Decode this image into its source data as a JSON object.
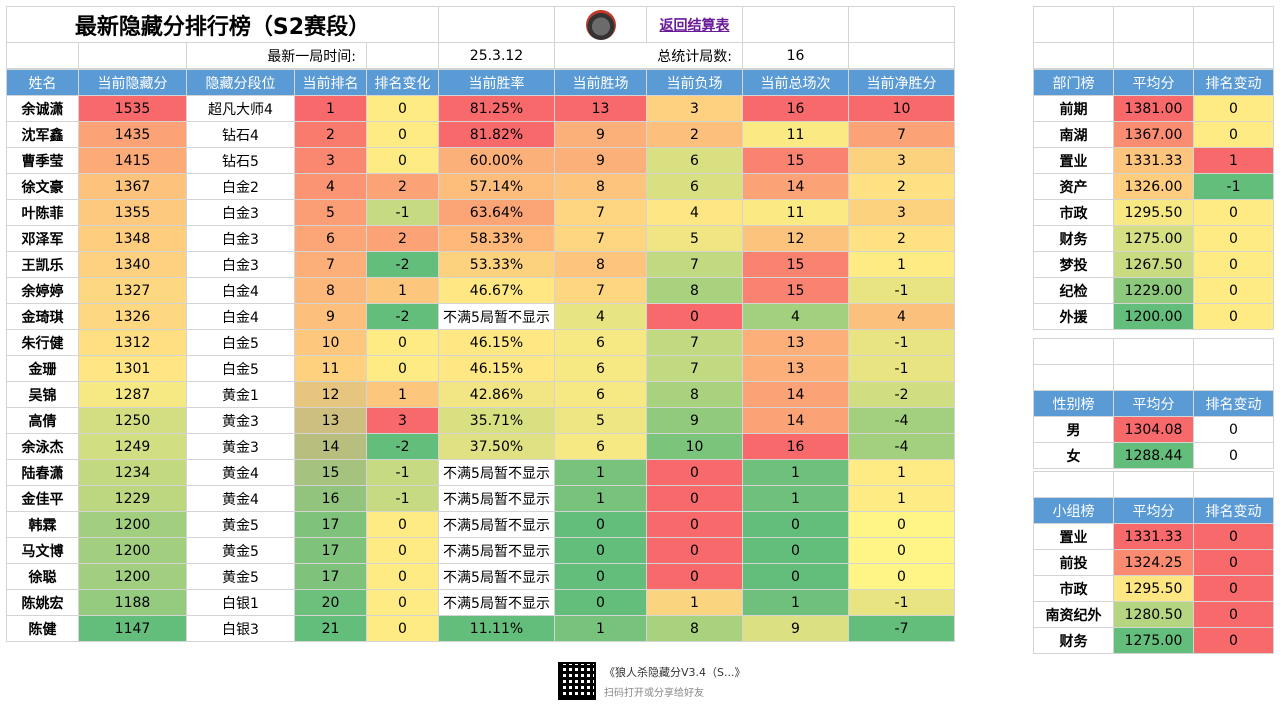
{
  "header": {
    "title": "最新隐藏分排行榜（S2赛段）",
    "back_link": "返回结算表",
    "last_game_label": "最新一局时间:",
    "last_game_value": "25.3.12",
    "total_games_label": "总统计局数:",
    "total_games_value": "16"
  },
  "main_table": {
    "columns": [
      "姓名",
      "当前隐藏分",
      "隐藏分段位",
      "当前排名",
      "排名变化",
      "当前胜率",
      "当前胜场",
      "当前负场",
      "当前总场次",
      "当前净胜分"
    ],
    "rows": [
      {
        "cells": [
          "余诚潇",
          "1535",
          "超凡大师4",
          "1",
          "0",
          "81.25%",
          "13",
          "3",
          "16",
          "10"
        ],
        "colors": [
          "#fff",
          "#f8696b",
          "#fff",
          "#f8696b",
          "#ffeb84",
          "#f8696b",
          "#f8696b",
          "#fdd17f",
          "#f8696b",
          "#f8696b"
        ]
      },
      {
        "cells": [
          "沈军鑫",
          "1435",
          "钻石4",
          "2",
          "0",
          "81.82%",
          "9",
          "2",
          "11",
          "7"
        ],
        "colors": [
          "#fff",
          "#fba376",
          "#fff",
          "#f97b6e",
          "#ffeb84",
          "#f8696b",
          "#fcb079",
          "#fdc07c",
          "#fbea83",
          "#fba376"
        ]
      },
      {
        "cells": [
          "曹季莹",
          "1415",
          "钻石5",
          "3",
          "0",
          "60.00%",
          "9",
          "6",
          "15",
          "3"
        ],
        "colors": [
          "#fff",
          "#fcaa77",
          "#fff",
          "#fa8871",
          "#ffeb84",
          "#fcb079",
          "#fcb079",
          "#d8e082",
          "#f98270",
          "#fdd27f"
        ]
      },
      {
        "cells": [
          "徐文豪",
          "1367",
          "白金2",
          "4",
          "2",
          "57.14%",
          "8",
          "6",
          "14",
          "2"
        ],
        "colors": [
          "#fff",
          "#fdc37d",
          "#fff",
          "#fb9473",
          "#fba376",
          "#fdbe7b",
          "#fdc47d",
          "#d8e082",
          "#fba276",
          "#fee182"
        ]
      },
      {
        "cells": [
          "叶陈菲",
          "1355",
          "白金3",
          "5",
          "-1",
          "63.64%",
          "7",
          "4",
          "11",
          "3"
        ],
        "colors": [
          "#fff",
          "#fdc97e",
          "#fff",
          "#fb9d75",
          "#c5da81",
          "#fba577",
          "#fed680",
          "#fde683",
          "#fbea83",
          "#fdd27f"
        ]
      },
      {
        "cells": [
          "邓泽军",
          "1348",
          "白金3",
          "6",
          "2",
          "58.33%",
          "7",
          "5",
          "12",
          "2"
        ],
        "colors": [
          "#fff",
          "#fecd7e",
          "#fff",
          "#fca677",
          "#fba376",
          "#fdb87a",
          "#fed680",
          "#efe683",
          "#fcc37c",
          "#fee182"
        ]
      },
      {
        "cells": [
          "王凯乐",
          "1340",
          "白金3",
          "7",
          "-2",
          "53.33%",
          "8",
          "7",
          "15",
          "1"
        ],
        "colors": [
          "#fff",
          "#fed180",
          "#fff",
          "#fcaf79",
          "#63be7b",
          "#fdd27f",
          "#fdc47d",
          "#c1da81",
          "#f98270",
          "#ffeb84"
        ]
      },
      {
        "cells": [
          "余婷婷",
          "1327",
          "白金4",
          "8",
          "1",
          "46.67%",
          "7",
          "8",
          "15",
          "-1"
        ],
        "colors": [
          "#fff",
          "#fed880",
          "#fff",
          "#fcb77a",
          "#fdc67d",
          "#ffe884",
          "#fed680",
          "#a9d27f",
          "#f98270",
          "#e8e482"
        ]
      },
      {
        "cells": [
          "金琦琪",
          "1326",
          "白金4",
          "9",
          "-2",
          "不满5局暂不显示",
          "4",
          "0",
          "4",
          "4"
        ],
        "colors": [
          "#fff",
          "#fed880",
          "#fff",
          "#fdc07c",
          "#63be7b",
          "#fff",
          "#e7e482",
          "#f8696b",
          "#a2d07f",
          "#fbc17c"
        ]
      },
      {
        "cells": [
          "朱行健",
          "1312",
          "白金5",
          "10",
          "0",
          "46.15%",
          "6",
          "7",
          "13",
          "-1"
        ],
        "colors": [
          "#fff",
          "#ffdf82",
          "#fff",
          "#fdc87d",
          "#ffeb84",
          "#ffe884",
          "#f6e883",
          "#c1da81",
          "#fcaf78",
          "#e8e482"
        ]
      },
      {
        "cells": [
          "金珊",
          "1301",
          "白金5",
          "11",
          "0",
          "46.15%",
          "6",
          "7",
          "13",
          "-1"
        ],
        "colors": [
          "#fff",
          "#ffe584",
          "#fff",
          "#fed17f",
          "#ffeb84",
          "#ffe884",
          "#f6e883",
          "#c1da81",
          "#fcaf78",
          "#e8e482"
        ]
      },
      {
        "cells": [
          "吴锦",
          "1287",
          "黄金1",
          "12",
          "1",
          "42.86%",
          "6",
          "8",
          "14",
          "-2"
        ],
        "colors": [
          "#fff",
          "#f6e883",
          "#fff",
          "#e6c57f",
          "#fdc67d",
          "#f1e683",
          "#f6e883",
          "#a9d27f",
          "#fba276",
          "#d0dd81"
        ]
      },
      {
        "cells": [
          "高倩",
          "1250",
          "黄金3",
          "13",
          "3",
          "35.71%",
          "5",
          "9",
          "14",
          "-4"
        ],
        "colors": [
          "#fff",
          "#d2de81",
          "#fff",
          "#cdbf7f",
          "#f8696b",
          "#d8e082",
          "#eee583",
          "#91ca7d",
          "#fba276",
          "#a2d07f"
        ]
      },
      {
        "cells": [
          "余泳杰",
          "1249",
          "黄金3",
          "14",
          "-2",
          "37.50%",
          "6",
          "10",
          "16",
          "-4"
        ],
        "colors": [
          "#fff",
          "#d1de81",
          "#fff",
          "#b8bf7e",
          "#63be7b",
          "#dfe182",
          "#f6e883",
          "#7ac47c",
          "#f8696b",
          "#a2d07f"
        ]
      },
      {
        "cells": [
          "陆春潇",
          "1234",
          "黄金4",
          "15",
          "-1",
          "不满5局暂不显示",
          "1",
          "0",
          "1",
          "1"
        ],
        "colors": [
          "#fff",
          "#c2d980",
          "#fff",
          "#a5c37e",
          "#c5da81",
          "#fff",
          "#78c37c",
          "#f8696b",
          "#6fc07c",
          "#ffeb84"
        ]
      },
      {
        "cells": [
          "金佳平",
          "1229",
          "黄金4",
          "16",
          "-1",
          "不满5局暂不显示",
          "1",
          "0",
          "1",
          "1"
        ],
        "colors": [
          "#fff",
          "#bdd780",
          "#fff",
          "#92c47d",
          "#c5da81",
          "#fff",
          "#78c37c",
          "#f8696b",
          "#6fc07c",
          "#ffeb84"
        ]
      },
      {
        "cells": [
          "韩霖",
          "1200",
          "黄金5",
          "17",
          "0",
          "不满5局暂不显示",
          "0",
          "0",
          "0",
          "0"
        ],
        "colors": [
          "#fff",
          "#a1cf7f",
          "#fff",
          "#7fc27c",
          "#ffeb84",
          "#fff",
          "#63be7b",
          "#f8696b",
          "#63be7b",
          "#fef586"
        ]
      },
      {
        "cells": [
          "马文博",
          "1200",
          "黄金5",
          "17",
          "0",
          "不满5局暂不显示",
          "0",
          "0",
          "0",
          "0"
        ],
        "colors": [
          "#fff",
          "#a1cf7f",
          "#fff",
          "#7fc27c",
          "#ffeb84",
          "#fff",
          "#63be7b",
          "#f8696b",
          "#63be7b",
          "#fef586"
        ]
      },
      {
        "cells": [
          "徐聪",
          "1200",
          "黄金5",
          "17",
          "0",
          "不满5局暂不显示",
          "0",
          "0",
          "0",
          "0"
        ],
        "colors": [
          "#fff",
          "#a1cf7f",
          "#fff",
          "#7fc27c",
          "#ffeb84",
          "#fff",
          "#63be7b",
          "#f8696b",
          "#63be7b",
          "#fef586"
        ]
      },
      {
        "cells": [
          "陈姚宏",
          "1188",
          "白银1",
          "20",
          "0",
          "不满5局暂不显示",
          "0",
          "1",
          "1",
          "-1"
        ],
        "colors": [
          "#fff",
          "#94cb7e",
          "#fff",
          "#6cc07b",
          "#ffeb84",
          "#fff",
          "#63be7b",
          "#fbd47f",
          "#6fc07c",
          "#e8e482"
        ]
      },
      {
        "cells": [
          "陈健",
          "1147",
          "白银3",
          "21",
          "0",
          "11.11%",
          "1",
          "8",
          "9",
          "-7"
        ],
        "colors": [
          "#fff",
          "#63be7b",
          "#fff",
          "#63be7b",
          "#ffeb84",
          "#63be7b",
          "#78c37c",
          "#a9d27f",
          "#dbe182",
          "#63be7b"
        ]
      }
    ]
  },
  "dept_table": {
    "columns": [
      "部门榜",
      "平均分",
      "排名变动"
    ],
    "rows": [
      {
        "cells": [
          "前期",
          "1381.00",
          "0"
        ],
        "colors": [
          "#fff",
          "#f8696b",
          "#ffeb84"
        ]
      },
      {
        "cells": [
          "南湖",
          "1367.00",
          "0"
        ],
        "colors": [
          "#fff",
          "#fa8c72",
          "#ffeb84"
        ]
      },
      {
        "cells": [
          "置业",
          "1331.33",
          "1"
        ],
        "colors": [
          "#fff",
          "#fdc47d",
          "#f8696b"
        ]
      },
      {
        "cells": [
          "资产",
          "1326.00",
          "-1"
        ],
        "colors": [
          "#fff",
          "#fecd7e",
          "#63be7b"
        ]
      },
      {
        "cells": [
          "市政",
          "1295.50",
          "0"
        ],
        "colors": [
          "#fff",
          "#f7e883",
          "#ffeb84"
        ]
      },
      {
        "cells": [
          "财务",
          "1275.00",
          "0"
        ],
        "colors": [
          "#fff",
          "#d6df82",
          "#ffeb84"
        ]
      },
      {
        "cells": [
          "梦投",
          "1267.50",
          "0"
        ],
        "colors": [
          "#fff",
          "#c8db81",
          "#ffeb84"
        ]
      },
      {
        "cells": [
          "纪检",
          "1229.00",
          "0"
        ],
        "colors": [
          "#fff",
          "#8dc97d",
          "#ffeb84"
        ]
      },
      {
        "cells": [
          "外援",
          "1200.00",
          "0"
        ],
        "colors": [
          "#fff",
          "#63be7b",
          "#ffeb84"
        ]
      }
    ]
  },
  "gender_table": {
    "columns": [
      "性别榜",
      "平均分",
      "排名变动"
    ],
    "rows": [
      {
        "cells": [
          "男",
          "1304.08",
          "0"
        ],
        "colors": [
          "#fff",
          "#f8696b",
          "#fff"
        ]
      },
      {
        "cells": [
          "女",
          "1288.44",
          "0"
        ],
        "colors": [
          "#fff",
          "#63be7b",
          "#fff"
        ]
      }
    ]
  },
  "group_table": {
    "columns": [
      "小组榜",
      "平均分",
      "排名变动"
    ],
    "rows": [
      {
        "cells": [
          "置业",
          "1331.33",
          "0"
        ],
        "colors": [
          "#fff",
          "#f8696b",
          "#f8696b"
        ]
      },
      {
        "cells": [
          "前投",
          "1324.25",
          "0"
        ],
        "colors": [
          "#fff",
          "#fa8b71",
          "#f8696b"
        ]
      },
      {
        "cells": [
          "市政",
          "1295.50",
          "0"
        ],
        "colors": [
          "#fff",
          "#fee683",
          "#f8696b"
        ]
      },
      {
        "cells": [
          "南资纪外",
          "1280.50",
          "0"
        ],
        "colors": [
          "#fff",
          "#b5d580",
          "#f8696b"
        ]
      },
      {
        "cells": [
          "财务",
          "1275.00",
          "0"
        ],
        "colors": [
          "#fff",
          "#63be7b",
          "#f8696b"
        ]
      }
    ]
  },
  "footer": {
    "title": "《狼人杀隐藏分V3.4（S...》",
    "subtitle": "扫码打开或分享给好友"
  }
}
